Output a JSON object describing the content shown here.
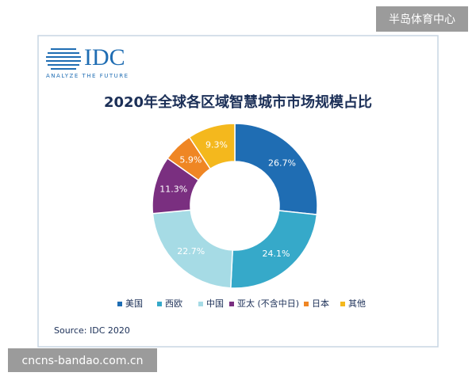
{
  "chart_data": {
    "type": "pie",
    "title": "2020年全球各区域智慧城市市场规模占比",
    "categories": [
      "美国",
      "西欧",
      "中国",
      "亚太 (不含中日)",
      "日本",
      "其他"
    ],
    "values": [
      26.7,
      24.1,
      22.7,
      11.3,
      5.9,
      9.3
    ],
    "value_labels": [
      "26.7%",
      "24.1%",
      "22.7%",
      "11.3%",
      "5.9%",
      "9.3%"
    ],
    "colors": [
      "#1f6db3",
      "#36a9c9",
      "#a6dbe5",
      "#7a2f80",
      "#ef8624",
      "#f4b81d"
    ],
    "legend": "bottom",
    "source": "Source: IDC 2020"
  },
  "logo": {
    "text": "IDC",
    "tagline": "ANALYZE THE FUTURE"
  },
  "watermarks": [
    "半岛体育中心",
    "cncns-bandao.com.cn"
  ]
}
